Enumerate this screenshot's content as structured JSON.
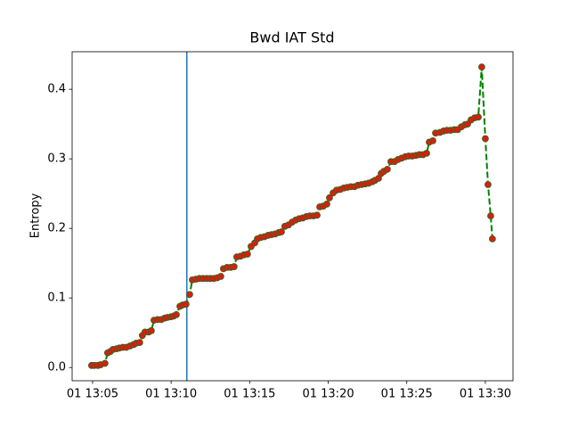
{
  "chart_data": {
    "type": "line",
    "title": "Bwd IAT Std",
    "y_label": "Entropy",
    "x": [
      784.94,
      785.11,
      785.34,
      785.51,
      785.79,
      785.96,
      786.13,
      786.3,
      786.53,
      786.7,
      786.93,
      787.15,
      787.38,
      787.61,
      787.78,
      788.0,
      788.17,
      788.34,
      788.57,
      788.74,
      788.91,
      789.14,
      789.37,
      789.59,
      789.76,
      789.99,
      790.16,
      790.33,
      790.56,
      790.73,
      790.95,
      791.18,
      791.35,
      791.58,
      791.8,
      792.03,
      792.26,
      792.48,
      792.71,
      792.94,
      793.16,
      793.33,
      793.56,
      793.79,
      794.01,
      794.18,
      794.41,
      794.64,
      794.86,
      795.09,
      795.32,
      795.49,
      795.71,
      795.94,
      796.17,
      796.39,
      796.62,
      796.85,
      797.02,
      797.24,
      797.47,
      797.7,
      797.93,
      798.15,
      798.38,
      798.61,
      798.83,
      799.06,
      799.29,
      799.46,
      799.68,
      799.91,
      800.08,
      800.31,
      800.53,
      800.76,
      800.99,
      801.21,
      801.44,
      801.67,
      801.89,
      802.12,
      802.35,
      802.57,
      802.8,
      802.97,
      803.2,
      803.37,
      803.54,
      803.76,
      803.99,
      804.22,
      804.44,
      804.67,
      804.9,
      805.12,
      805.35,
      805.58,
      805.8,
      806.03,
      806.26,
      806.43,
      806.66,
      806.83,
      807.11,
      807.34,
      807.56,
      807.79,
      808.02,
      808.24,
      808.47,
      808.7,
      808.87,
      809.09,
      809.32,
      809.55,
      809.77,
      810.0,
      810.17,
      810.34,
      810.45
    ],
    "series": [
      {
        "color": "green",
        "marker_color": "#e8180c",
        "marker_edge_color": "#4f5a1f",
        "values": [
          0.003,
          0.003,
          0.003,
          0.004,
          0.006,
          0.021,
          0.023,
          0.026,
          0.027,
          0.028,
          0.029,
          0.029,
          0.031,
          0.033,
          0.035,
          0.036,
          0.046,
          0.051,
          0.051,
          0.053,
          0.068,
          0.069,
          0.069,
          0.071,
          0.072,
          0.073,
          0.074,
          0.076,
          0.088,
          0.09,
          0.091,
          0.105,
          0.126,
          0.127,
          0.128,
          0.128,
          0.128,
          0.128,
          0.128,
          0.129,
          0.131,
          0.142,
          0.144,
          0.144,
          0.145,
          0.159,
          0.16,
          0.162,
          0.163,
          0.174,
          0.179,
          0.185,
          0.187,
          0.188,
          0.19,
          0.191,
          0.192,
          0.194,
          0.195,
          0.203,
          0.205,
          0.209,
          0.212,
          0.214,
          0.215,
          0.217,
          0.218,
          0.218,
          0.219,
          0.231,
          0.232,
          0.235,
          0.244,
          0.251,
          0.255,
          0.256,
          0.258,
          0.259,
          0.26,
          0.26,
          0.262,
          0.263,
          0.264,
          0.265,
          0.267,
          0.269,
          0.272,
          0.279,
          0.282,
          0.285,
          0.296,
          0.296,
          0.299,
          0.301,
          0.303,
          0.304,
          0.304,
          0.305,
          0.306,
          0.306,
          0.308,
          0.324,
          0.326,
          0.337,
          0.338,
          0.34,
          0.341,
          0.341,
          0.342,
          0.342,
          0.346,
          0.349,
          0.35,
          0.356,
          0.359,
          0.36,
          0.432,
          0.329,
          0.263,
          0.218,
          0.185
        ]
      }
    ],
    "vlines": [
      {
        "x": 791.0,
        "color": "#1f77b4"
      }
    ],
    "xlim": [
      783.7,
      811.76
    ],
    "xticks": [
      {
        "value": 785,
        "label": "01 13:05"
      },
      {
        "value": 790,
        "label": "01 13:10"
      },
      {
        "value": 795,
        "label": "01 13:15"
      },
      {
        "value": 800,
        "label": "01 13:20"
      },
      {
        "value": 805,
        "label": "01 13:25"
      },
      {
        "value": 810,
        "label": "01 13:30"
      }
    ],
    "ylim": [
      -0.019,
      0.454
    ],
    "yticks": [
      {
        "value": 0,
        "label": "0.0"
      },
      0.1,
      0.2,
      0.3,
      0.4
    ],
    "grid": false
  }
}
